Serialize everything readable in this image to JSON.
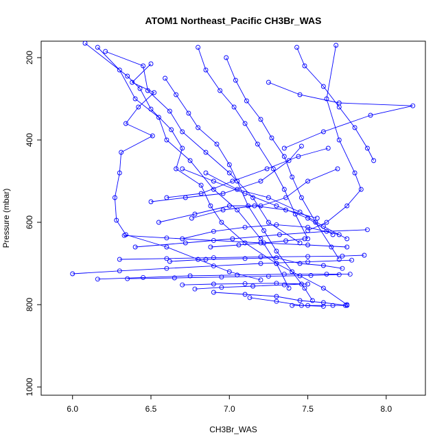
{
  "chart_data": {
    "type": "line",
    "title": "ATOM1 Northeast_Pacific CH3Br_WAS",
    "xlabel": "CH3Br_WAS",
    "ylabel": "Pressure (mbar)",
    "xlim": [
      5.8,
      8.25
    ],
    "ylim": [
      1020,
      160
    ],
    "y_inverted": true,
    "x_ticks": [
      6.0,
      6.5,
      7.0,
      7.5,
      8.0
    ],
    "x_tick_labels": [
      "6.0",
      "6.5",
      "7.0",
      "7.5",
      "8.0"
    ],
    "y_ticks": [
      200,
      400,
      600,
      800,
      1000
    ],
    "y_tick_labels": [
      "200",
      "400",
      "600",
      "800",
      "1000"
    ],
    "grid": false,
    "legend": "none",
    "colors": {
      "series": "#0000ff",
      "frame": "#000000"
    },
    "series": [
      {
        "x": [
          6.08,
          6.35,
          6.43,
          6.5,
          6.63,
          6.7,
          6.66,
          6.82,
          6.88,
          6.95,
          7.1,
          7.3,
          7.45,
          7.6,
          7.75
        ],
        "y": [
          165,
          245,
          275,
          325,
          375,
          420,
          470,
          510,
          560,
          600,
          650,
          700,
          730,
          760,
          800
        ]
      },
      {
        "x": [
          6.16,
          6.3,
          6.4,
          6.55,
          6.6,
          6.75,
          6.9,
          7.05,
          7.2,
          7.3,
          7.38
        ],
        "y": [
          175,
          230,
          300,
          345,
          400,
          450,
          520,
          570,
          640,
          700,
          760
        ]
      },
      {
        "x": [
          6.21,
          6.45,
          6.48,
          6.62,
          6.7,
          6.85,
          7.0,
          7.15,
          7.25,
          7.45
        ],
        "y": [
          185,
          220,
          280,
          330,
          380,
          430,
          480,
          540,
          600,
          650
        ]
      },
      {
        "x": [
          6.5,
          6.38,
          6.52,
          6.42,
          6.34,
          6.51,
          6.31,
          6.3,
          6.27,
          6.28,
          6.34,
          6.6,
          6.8,
          7.0,
          7.2
        ],
        "y": [
          215,
          260,
          285,
          320,
          360,
          390,
          430,
          480,
          540,
          595,
          630,
          660,
          690,
          720,
          740
        ]
      },
      {
        "x": [
          6.59,
          6.66,
          6.74,
          6.8,
          6.92,
          7.0,
          7.05,
          7.12,
          7.22,
          7.3,
          7.4,
          7.48,
          7.53
        ],
        "y": [
          250,
          290,
          335,
          370,
          410,
          460,
          500,
          560,
          620,
          670,
          720,
          760,
          790
        ]
      },
      {
        "x": [
          6.8,
          6.85,
          6.94,
          7.03,
          7.1,
          7.18,
          7.28,
          7.35,
          7.42,
          7.5
        ],
        "y": [
          175,
          230,
          280,
          320,
          360,
          410,
          470,
          520,
          580,
          640
        ]
      },
      {
        "x": [
          6.98,
          7.04,
          7.11,
          7.2,
          7.27,
          7.35,
          7.4,
          7.46,
          7.55,
          7.65,
          7.7
        ],
        "y": [
          200,
          255,
          305,
          350,
          395,
          440,
          490,
          540,
          600,
          660,
          690
        ]
      },
      {
        "x": [
          7.43,
          7.48,
          7.6,
          7.7,
          7.8,
          7.88,
          7.92
        ],
        "y": [
          175,
          220,
          270,
          320,
          370,
          420,
          450
        ]
      },
      {
        "x": [
          7.25,
          7.45,
          7.7,
          8.17,
          7.9,
          7.6,
          7.35
        ],
        "y": [
          260,
          290,
          310,
          317,
          340,
          380,
          420
        ]
      },
      {
        "x": [
          7.68,
          7.62,
          7.7,
          7.8,
          7.84,
          7.75,
          7.62,
          7.5
        ],
        "y": [
          170,
          300,
          400,
          480,
          520,
          560,
          600,
          620
        ]
      },
      {
        "x": [
          6.0,
          6.3,
          6.6,
          6.9,
          7.2,
          7.5,
          7.78
        ],
        "y": [
          725,
          718,
          712,
          706,
          700,
          696,
          692
        ]
      },
      {
        "x": [
          6.16,
          6.45,
          6.75,
          7.05,
          7.35,
          7.62,
          7.77
        ],
        "y": [
          738,
          734,
          730,
          728,
          726,
          726,
          726
        ]
      },
      {
        "x": [
          6.35,
          6.65,
          6.95,
          7.25,
          7.52,
          7.7
        ],
        "y": [
          737,
          735,
          733,
          731,
          729,
          727
        ]
      },
      {
        "x": [
          6.3,
          6.6,
          6.9,
          7.2,
          7.5,
          7.72,
          7.86
        ],
        "y": [
          690,
          688,
          686,
          684,
          683,
          682,
          680
        ]
      },
      {
        "x": [
          6.4,
          6.72,
          7.02,
          7.32,
          7.62,
          7.88
        ],
        "y": [
          660,
          650,
          640,
          630,
          622,
          618
        ]
      },
      {
        "x": [
          6.33,
          6.6,
          6.9,
          7.2,
          7.5,
          7.75
        ],
        "y": [
          632,
          638,
          644,
          650,
          655,
          660
        ]
      },
      {
        "x": [
          6.7,
          6.9,
          7.1,
          7.3,
          7.5
        ],
        "y": [
          752,
          750,
          749,
          748,
          750
        ]
      },
      {
        "x": [
          6.78,
          6.95,
          7.15,
          7.35,
          7.46
        ],
        "y": [
          762,
          758,
          755,
          752,
          750
        ]
      },
      {
        "x": [
          6.9,
          7.1,
          7.3,
          7.45,
          7.6,
          7.75
        ],
        "y": [
          770,
          775,
          780,
          790,
          795,
          802
        ]
      },
      {
        "x": [
          7.13,
          7.3,
          7.46,
          7.6
        ],
        "y": [
          783,
          792,
          802,
          804
        ]
      },
      {
        "x": [
          7.4,
          7.5,
          7.66,
          7.74
        ],
        "y": [
          802,
          802,
          802,
          802
        ]
      },
      {
        "x": [
          6.7,
          6.9,
          7.1,
          7.3,
          7.5,
          7.66
        ],
        "y": [
          470,
          500,
          530,
          560,
          590,
          630
        ]
      },
      {
        "x": [
          6.85,
          7.05,
          7.25,
          7.45,
          7.6,
          7.75
        ],
        "y": [
          480,
          520,
          540,
          575,
          610,
          640
        ]
      },
      {
        "x": [
          6.6,
          6.82,
          7.02,
          7.24,
          7.44,
          7.63
        ],
        "y": [
          540,
          530,
          500,
          470,
          440,
          420
        ]
      },
      {
        "x": [
          6.5,
          6.72,
          6.96,
          7.2,
          7.38,
          7.46
        ],
        "y": [
          550,
          540,
          530,
          500,
          450,
          415
        ]
      },
      {
        "x": [
          6.55,
          6.78,
          7.0,
          7.2,
          7.36,
          7.5,
          7.69
        ],
        "y": [
          600,
          580,
          560,
          560,
          540,
          500,
          470
        ]
      },
      {
        "x": [
          6.62,
          6.85,
          7.1,
          7.3,
          7.45,
          7.6,
          7.72
        ],
        "y": [
          695,
          690,
          688,
          686,
          700,
          705,
          712
        ]
      },
      {
        "x": [
          6.7,
          6.9,
          7.1,
          7.3,
          7.5,
          7.7
        ],
        "y": [
          640,
          622,
          612,
          606,
          612,
          630
        ]
      },
      {
        "x": [
          6.76,
          6.96,
          7.16,
          7.36,
          7.56
        ],
        "y": [
          590,
          570,
          560,
          570,
          590
        ]
      },
      {
        "x": [
          6.88,
          7.06,
          7.22,
          7.36,
          7.48
        ],
        "y": [
          660,
          655,
          650,
          645,
          640
        ]
      }
    ]
  }
}
